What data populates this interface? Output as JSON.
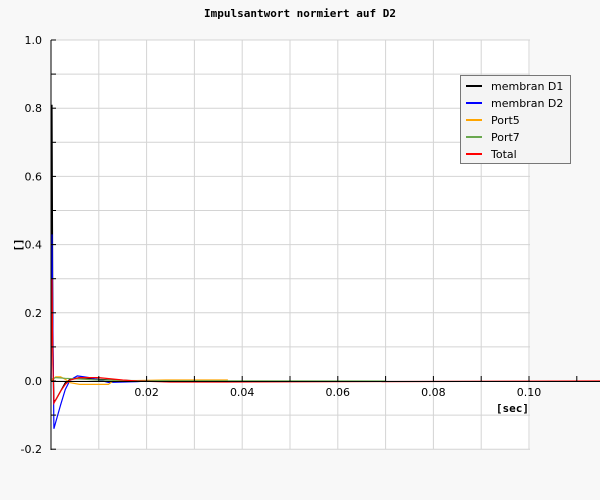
{
  "chart_data": {
    "type": "line",
    "title": "Impulsantwort normiert auf D2",
    "xlabel": "[sec]",
    "ylabel": "[]",
    "xlim": [
      0,
      0.1
    ],
    "ylim": [
      -0.2,
      1.0
    ],
    "xticks": [
      0.02,
      0.04,
      0.06,
      0.08,
      0.1
    ],
    "xtick_labels": [
      "0.02",
      "0.04",
      "0.06",
      "0.08",
      "0.10"
    ],
    "yticks": [
      -0.2,
      0.0,
      0.2,
      0.4,
      0.6,
      0.8,
      1.0
    ],
    "ytick_labels": [
      "-0.2",
      "0.0",
      "0.2",
      "0.4",
      "0.6",
      "0.8",
      "1.0"
    ],
    "grid": true,
    "legend_position": "top-right",
    "series": [
      {
        "name": "membran D1",
        "color": "#000000",
        "points": [
          [
            0,
            0
          ],
          [
            0.0002,
            0.81
          ],
          [
            0.0004,
            0.1
          ],
          [
            0.0006,
            -0.06
          ],
          [
            0.001,
            -0.055
          ],
          [
            0.002,
            -0.03
          ],
          [
            0.003,
            -0.005
          ],
          [
            0.004,
            0.005
          ],
          [
            0.006,
            0.01
          ],
          [
            0.01,
            0.005
          ],
          [
            0.015,
            0.002
          ],
          [
            0.025,
            -0.002
          ],
          [
            0.038,
            -0.002
          ]
        ]
      },
      {
        "name": "membran D2",
        "color": "#0000ff",
        "points": [
          [
            0,
            0
          ],
          [
            0.0002,
            0.43
          ],
          [
            0.0004,
            0.15
          ],
          [
            0.0006,
            -0.14
          ],
          [
            0.001,
            -0.12
          ],
          [
            0.002,
            -0.07
          ],
          [
            0.003,
            -0.025
          ],
          [
            0.004,
            0.003
          ],
          [
            0.0055,
            0.015
          ],
          [
            0.008,
            0.01
          ],
          [
            0.012,
            -0.004
          ],
          [
            0.018,
            -0.002
          ],
          [
            0.02,
            0
          ]
        ]
      },
      {
        "name": "Port5",
        "color": "#ffa500",
        "points": [
          [
            0,
            0
          ],
          [
            0.001,
            0.012
          ],
          [
            0.002,
            0.012
          ],
          [
            0.003,
            0.005
          ],
          [
            0.004,
            -0.005
          ],
          [
            0.006,
            -0.01
          ],
          [
            0.012,
            -0.01
          ],
          [
            0.013,
            0
          ],
          [
            0.024,
            0.003
          ],
          [
            0.037,
            0.003
          ]
        ]
      },
      {
        "name": "Port7",
        "color": "#6aa84f",
        "points": [
          [
            0,
            0.005
          ],
          [
            0.001,
            0.01
          ],
          [
            0.003,
            0.008
          ],
          [
            0.01,
            0.003
          ],
          [
            0.02,
            0.001
          ],
          [
            0.07,
            0
          ]
        ]
      },
      {
        "name": "Total",
        "color": "#ff0000",
        "points": [
          [
            0,
            0
          ],
          [
            0.0002,
            0.3
          ],
          [
            0.0004,
            0.05
          ],
          [
            0.0006,
            -0.065
          ],
          [
            0.001,
            -0.055
          ],
          [
            0.002,
            -0.03
          ],
          [
            0.003,
            -0.01
          ],
          [
            0.004,
            0.003
          ],
          [
            0.006,
            0.01
          ],
          [
            0.01,
            0.01
          ],
          [
            0.015,
            0.003
          ],
          [
            0.018,
            0
          ],
          [
            0.025,
            -0.003
          ],
          [
            0.037,
            -0.003
          ],
          [
            0.115,
            0
          ]
        ]
      }
    ]
  }
}
